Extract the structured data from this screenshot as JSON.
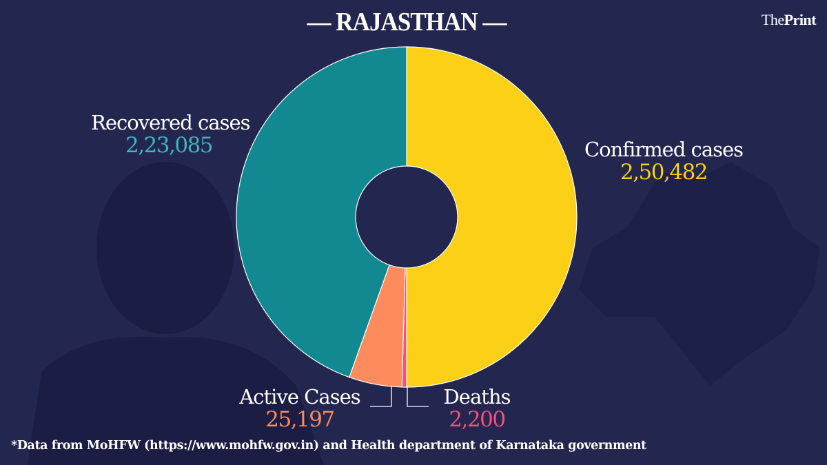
{
  "header": {
    "title": "RAJASTHAN",
    "logo_the": "The",
    "logo_print": "Print"
  },
  "footer": {
    "note": "*Data from MoHFW (https://www.mohfw.gov.in)  and Health department of  Karnataka government"
  },
  "chart_data": {
    "type": "pie",
    "donut": true,
    "legend": "none",
    "slices": [
      {
        "label": "Confirmed cases",
        "value": 250482,
        "display": "2,50,482",
        "color": "#fbd016"
      },
      {
        "label": "Deaths",
        "value": 2200,
        "display": "2,200",
        "color": "#f2527e"
      },
      {
        "label": "Active Cases",
        "value": 25197,
        "display": "25,197",
        "color": "#fd8b5e"
      },
      {
        "label": "Recovered cases",
        "value": 223085,
        "display": "2,23,085",
        "color": "#128891"
      }
    ]
  },
  "colors": {
    "background": "#23264f",
    "label_text": "#ffffff"
  }
}
